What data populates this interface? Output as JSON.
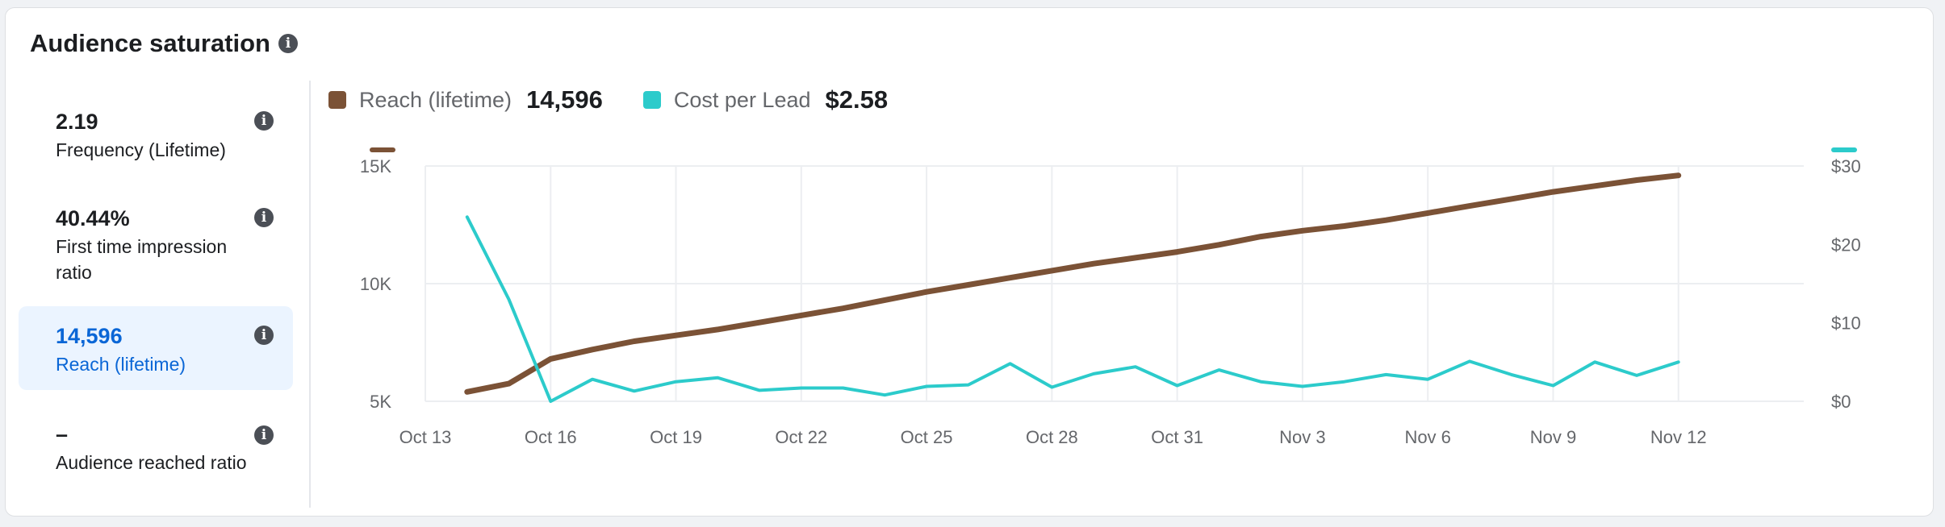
{
  "header": {
    "title": "Audience saturation",
    "info_icon": "info-icon"
  },
  "metrics": [
    {
      "value": "2.19",
      "label": "Frequency (Lifetime)",
      "selected": false
    },
    {
      "value": "40.44%",
      "label": "First time impression ratio",
      "selected": false
    },
    {
      "value": "14,596",
      "label": "Reach (lifetime)",
      "selected": true
    },
    {
      "value": "–",
      "label": "Audience reached ratio",
      "selected": false
    }
  ],
  "legend": [
    {
      "name": "Reach (lifetime)",
      "value": "14,596",
      "color": "#7b5236"
    },
    {
      "name": "Cost per Lead",
      "value": "$2.58",
      "color": "#2ccbcb"
    }
  ],
  "colors": {
    "accent": "#0a66d6",
    "selected_bg": "#ebf4ff",
    "reach": "#7b5236",
    "cpl": "#2ccbcb"
  },
  "chart_data": {
    "type": "line",
    "x_ticks": [
      "Oct 13",
      "Oct 16",
      "Oct 19",
      "Oct 22",
      "Oct 25",
      "Oct 28",
      "Oct 31",
      "Nov 3",
      "Nov 6",
      "Nov 9",
      "Nov 12"
    ],
    "x_range": [
      "Oct 13",
      "Nov 15"
    ],
    "left_axis": {
      "ticks": [
        "5K",
        "10K",
        "15K"
      ],
      "range": [
        5000,
        15000
      ]
    },
    "right_axis": {
      "ticks": [
        "$0",
        "$10",
        "$20",
        "$30"
      ],
      "range": [
        0,
        30
      ]
    },
    "grid": true,
    "series": [
      {
        "name": "Reach (lifetime)",
        "axis": "left",
        "color": "#7b5236",
        "x": [
          "Oct 14",
          "Oct 15",
          "Oct 16",
          "Oct 17",
          "Oct 18",
          "Oct 19",
          "Oct 20",
          "Oct 21",
          "Oct 22",
          "Oct 23",
          "Oct 24",
          "Oct 25",
          "Oct 26",
          "Oct 27",
          "Oct 28",
          "Oct 29",
          "Oct 30",
          "Oct 31",
          "Nov 1",
          "Nov 2",
          "Nov 3",
          "Nov 4",
          "Nov 5",
          "Nov 6",
          "Nov 7",
          "Nov 8",
          "Nov 9",
          "Nov 10",
          "Nov 11",
          "Nov 12"
        ],
        "values": [
          5400,
          5750,
          6800,
          7200,
          7550,
          7800,
          8050,
          8350,
          8650,
          8950,
          9300,
          9650,
          9950,
          10250,
          10550,
          10850,
          11100,
          11350,
          11650,
          12000,
          12250,
          12450,
          12700,
          13000,
          13300,
          13600,
          13900,
          14150,
          14400,
          14600
        ]
      },
      {
        "name": "Cost per Lead",
        "axis": "right",
        "color": "#2ccbcb",
        "x": [
          "Oct 14",
          "Oct 15",
          "Oct 16",
          "Oct 17",
          "Oct 18",
          "Oct 19",
          "Oct 20",
          "Oct 21",
          "Oct 22",
          "Oct 23",
          "Oct 24",
          "Oct 25",
          "Oct 26",
          "Oct 27",
          "Oct 28",
          "Oct 29",
          "Oct 30",
          "Oct 31",
          "Nov 1",
          "Nov 2",
          "Nov 3",
          "Nov 4",
          "Nov 5",
          "Nov 6",
          "Nov 7",
          "Nov 8",
          "Nov 9",
          "Nov 10",
          "Nov 11",
          "Nov 12"
        ],
        "values": [
          23.5,
          13,
          0,
          2.8,
          1.3,
          2.5,
          3,
          1.4,
          1.7,
          1.7,
          0.8,
          1.9,
          2.1,
          4.8,
          1.8,
          3.5,
          4.4,
          2,
          4,
          2.5,
          1.9,
          2.5,
          3.4,
          2.8,
          5.1,
          3.4,
          2,
          5,
          3.3,
          5
        ]
      }
    ]
  }
}
